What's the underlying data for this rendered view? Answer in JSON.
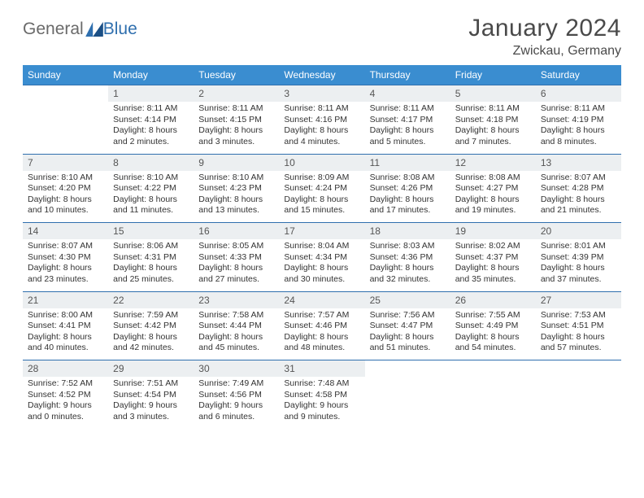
{
  "brand": {
    "part1": "General",
    "part2": "Blue"
  },
  "title": "January 2024",
  "location": "Zwickau, Germany",
  "colors": {
    "header_bg": "#3a8dd0",
    "header_text": "#ffffff",
    "rule": "#2f6fae",
    "daynum_bg": "#eceff1",
    "text": "#333333",
    "brand_gray": "#6a6a6a",
    "brand_blue": "#2f6fae"
  },
  "day_headers": [
    "Sunday",
    "Monday",
    "Tuesday",
    "Wednesday",
    "Thursday",
    "Friday",
    "Saturday"
  ],
  "weeks": [
    {
      "nums": [
        "",
        "1",
        "2",
        "3",
        "4",
        "5",
        "6"
      ],
      "cells": [
        {
          "blank": true
        },
        {
          "sunrise": "8:11 AM",
          "sunset": "4:14 PM",
          "dl": "8 hours and 2 minutes."
        },
        {
          "sunrise": "8:11 AM",
          "sunset": "4:15 PM",
          "dl": "8 hours and 3 minutes."
        },
        {
          "sunrise": "8:11 AM",
          "sunset": "4:16 PM",
          "dl": "8 hours and 4 minutes."
        },
        {
          "sunrise": "8:11 AM",
          "sunset": "4:17 PM",
          "dl": "8 hours and 5 minutes."
        },
        {
          "sunrise": "8:11 AM",
          "sunset": "4:18 PM",
          "dl": "8 hours and 7 minutes."
        },
        {
          "sunrise": "8:11 AM",
          "sunset": "4:19 PM",
          "dl": "8 hours and 8 minutes."
        }
      ]
    },
    {
      "nums": [
        "7",
        "8",
        "9",
        "10",
        "11",
        "12",
        "13"
      ],
      "cells": [
        {
          "sunrise": "8:10 AM",
          "sunset": "4:20 PM",
          "dl": "8 hours and 10 minutes."
        },
        {
          "sunrise": "8:10 AM",
          "sunset": "4:22 PM",
          "dl": "8 hours and 11 minutes."
        },
        {
          "sunrise": "8:10 AM",
          "sunset": "4:23 PM",
          "dl": "8 hours and 13 minutes."
        },
        {
          "sunrise": "8:09 AM",
          "sunset": "4:24 PM",
          "dl": "8 hours and 15 minutes."
        },
        {
          "sunrise": "8:08 AM",
          "sunset": "4:26 PM",
          "dl": "8 hours and 17 minutes."
        },
        {
          "sunrise": "8:08 AM",
          "sunset": "4:27 PM",
          "dl": "8 hours and 19 minutes."
        },
        {
          "sunrise": "8:07 AM",
          "sunset": "4:28 PM",
          "dl": "8 hours and 21 minutes."
        }
      ]
    },
    {
      "nums": [
        "14",
        "15",
        "16",
        "17",
        "18",
        "19",
        "20"
      ],
      "cells": [
        {
          "sunrise": "8:07 AM",
          "sunset": "4:30 PM",
          "dl": "8 hours and 23 minutes."
        },
        {
          "sunrise": "8:06 AM",
          "sunset": "4:31 PM",
          "dl": "8 hours and 25 minutes."
        },
        {
          "sunrise": "8:05 AM",
          "sunset": "4:33 PM",
          "dl": "8 hours and 27 minutes."
        },
        {
          "sunrise": "8:04 AM",
          "sunset": "4:34 PM",
          "dl": "8 hours and 30 minutes."
        },
        {
          "sunrise": "8:03 AM",
          "sunset": "4:36 PM",
          "dl": "8 hours and 32 minutes."
        },
        {
          "sunrise": "8:02 AM",
          "sunset": "4:37 PM",
          "dl": "8 hours and 35 minutes."
        },
        {
          "sunrise": "8:01 AM",
          "sunset": "4:39 PM",
          "dl": "8 hours and 37 minutes."
        }
      ]
    },
    {
      "nums": [
        "21",
        "22",
        "23",
        "24",
        "25",
        "26",
        "27"
      ],
      "cells": [
        {
          "sunrise": "8:00 AM",
          "sunset": "4:41 PM",
          "dl": "8 hours and 40 minutes."
        },
        {
          "sunrise": "7:59 AM",
          "sunset": "4:42 PM",
          "dl": "8 hours and 42 minutes."
        },
        {
          "sunrise": "7:58 AM",
          "sunset": "4:44 PM",
          "dl": "8 hours and 45 minutes."
        },
        {
          "sunrise": "7:57 AM",
          "sunset": "4:46 PM",
          "dl": "8 hours and 48 minutes."
        },
        {
          "sunrise": "7:56 AM",
          "sunset": "4:47 PM",
          "dl": "8 hours and 51 minutes."
        },
        {
          "sunrise": "7:55 AM",
          "sunset": "4:49 PM",
          "dl": "8 hours and 54 minutes."
        },
        {
          "sunrise": "7:53 AM",
          "sunset": "4:51 PM",
          "dl": "8 hours and 57 minutes."
        }
      ]
    },
    {
      "nums": [
        "28",
        "29",
        "30",
        "31",
        "",
        "",
        ""
      ],
      "cells": [
        {
          "sunrise": "7:52 AM",
          "sunset": "4:52 PM",
          "dl": "9 hours and 0 minutes."
        },
        {
          "sunrise": "7:51 AM",
          "sunset": "4:54 PM",
          "dl": "9 hours and 3 minutes."
        },
        {
          "sunrise": "7:49 AM",
          "sunset": "4:56 PM",
          "dl": "9 hours and 6 minutes."
        },
        {
          "sunrise": "7:48 AM",
          "sunset": "4:58 PM",
          "dl": "9 hours and 9 minutes."
        },
        {
          "blank": true
        },
        {
          "blank": true
        },
        {
          "blank": true
        }
      ]
    }
  ],
  "labels": {
    "sunrise": "Sunrise:",
    "sunset": "Sunset:",
    "daylight": "Daylight:"
  }
}
